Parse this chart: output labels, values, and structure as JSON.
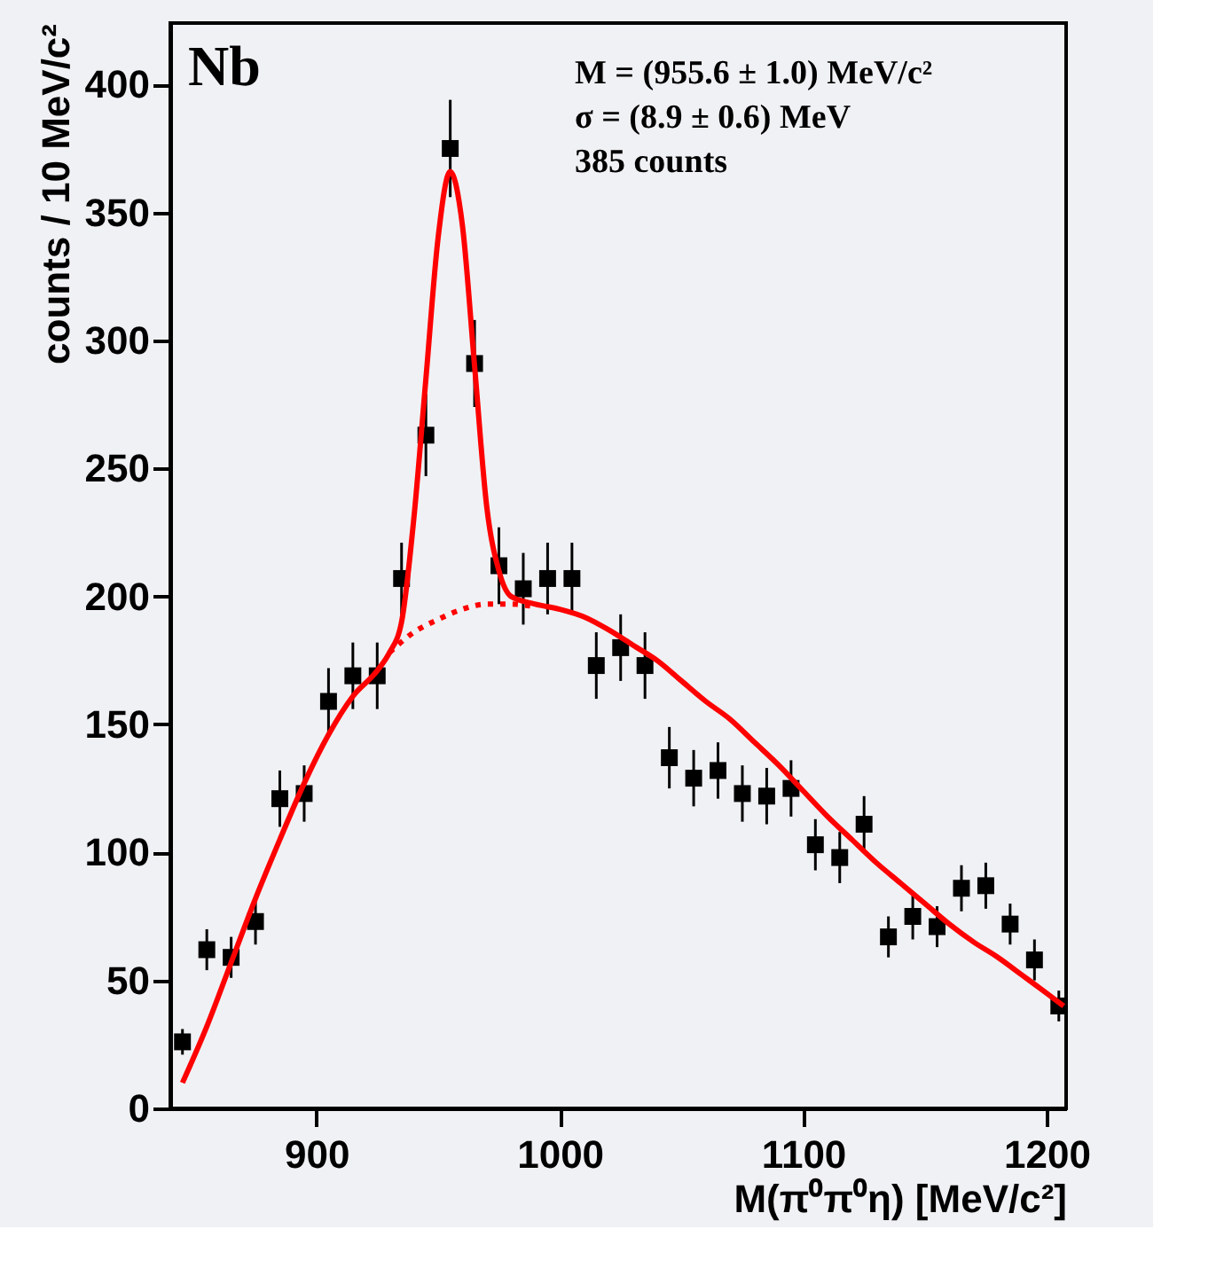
{
  "chart_data": {
    "type": "scatter",
    "xlabel": "M(π⁰π⁰η) [MeV/c²]",
    "ylabel": "counts / 10 MeV/c²",
    "annotations": [
      "Nb",
      "M = (955.6 ± 1.0) MeV/c²",
      "σ = (8.9 ± 0.6) MeV",
      "385 counts"
    ],
    "xlim": [
      840,
      1208
    ],
    "ylim": [
      0,
      424
    ],
    "xticks": [
      900,
      1000,
      1100,
      1200
    ],
    "yticks": [
      0,
      50,
      100,
      150,
      200,
      250,
      300,
      350,
      400
    ],
    "grid": false,
    "series": [
      {
        "marker": "square",
        "color": "#000000",
        "x": [
          845,
          855,
          865,
          875,
          885,
          895,
          905,
          915,
          925,
          935,
          945,
          955,
          965,
          975,
          985,
          995,
          1005,
          1015,
          1025,
          1035,
          1045,
          1055,
          1065,
          1075,
          1085,
          1095,
          1105,
          1115,
          1125,
          1135,
          1145,
          1155,
          1165,
          1175,
          1185,
          1195,
          1205
        ],
        "values": [
          26,
          62,
          59,
          73,
          121,
          123,
          159,
          169,
          169,
          207,
          263,
          375,
          291,
          212,
          203,
          207,
          207,
          173,
          180,
          173,
          137,
          129,
          132,
          123,
          122,
          125,
          103,
          98,
          111,
          67,
          75,
          71,
          86,
          87,
          72,
          58,
          40
        ],
        "errors": [
          5,
          8,
          8,
          9,
          11,
          11,
          13,
          13,
          13,
          14,
          16,
          19,
          17,
          15,
          14,
          14,
          14,
          13,
          13,
          13,
          12,
          11,
          11,
          11,
          11,
          11,
          10,
          10,
          11,
          8,
          9,
          8,
          9,
          9,
          8,
          8,
          6
        ]
      },
      {
        "type": "line",
        "line_style": "solid",
        "marker": "none",
        "color": "#ff0000",
        "x": [
          845,
          855,
          865,
          875,
          885,
          895,
          905,
          915,
          925,
          930,
          935,
          940,
          945,
          950,
          955,
          960,
          965,
          970,
          975,
          980,
          990,
          1000,
          1010,
          1020,
          1030,
          1040,
          1050,
          1060,
          1070,
          1080,
          1090,
          1100,
          1110,
          1120,
          1130,
          1140,
          1150,
          1160,
          1170,
          1180,
          1190,
          1200,
          1207
        ],
        "values": [
          10,
          32,
          57,
          82,
          105,
          127,
          146,
          161,
          171,
          178,
          190,
          230,
          285,
          340,
          366,
          345,
          290,
          235,
          210,
          200,
          197,
          195,
          192,
          187,
          181,
          175,
          167,
          159,
          152,
          143,
          134,
          124,
          114,
          105,
          96,
          88,
          80,
          72,
          65,
          59,
          52,
          45,
          40
        ]
      },
      {
        "type": "line",
        "line_style": "dotted",
        "marker": "none",
        "color": "#ff0000",
        "x": [
          930,
          940,
          950,
          960,
          970,
          980,
          990
        ],
        "values": [
          178,
          186,
          191,
          195,
          197,
          197,
          196
        ]
      }
    ]
  }
}
